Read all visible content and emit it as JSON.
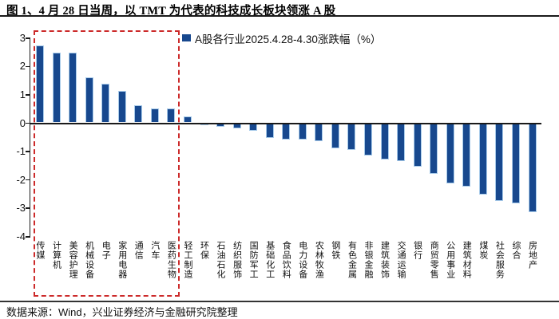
{
  "title": "图 1、4 月 28 日当周，以 TMT 为代表的科技成长板块领涨 A 股",
  "footer": "数据来源：Wind，兴业证券经济与金融研究院整理",
  "colors": {
    "bar": "#17488E",
    "bar_edge": "#A8CBEA",
    "highlight_box": "#CC2A2A",
    "axis": "#1A1A1A"
  },
  "chart_data": {
    "type": "bar",
    "title": "图 1、4 月 28 日当周，以 TMT 为代表的科技成长板块领涨 A 股",
    "legend": "A股各行业2025.4.28-4.30涨跌幅（%）",
    "legend_position": "top-right-inside",
    "xlabel": "",
    "ylabel": "",
    "ylim": [
      -4,
      3
    ],
    "y_ticks": [
      3,
      2,
      1,
      0,
      -1,
      -2,
      -3,
      -4
    ],
    "grid": false,
    "categories": [
      "传媒",
      "计算机",
      "美容护理",
      "机械设备",
      "电子",
      "家用电器",
      "通信",
      "汽车",
      "医药生物",
      "轻工制造",
      "环保",
      "石油石化",
      "纺织服饰",
      "国防军工",
      "基础化工",
      "食品饮料",
      "电力设备",
      "农林牧渔",
      "钢铁",
      "有色金属",
      "非银金融",
      "建筑装饰",
      "交通运输",
      "银行",
      "商贸零售",
      "公用事业",
      "建筑材料",
      "煤炭",
      "社会服务",
      "综合",
      "房地产"
    ],
    "values": [
      2.7,
      2.45,
      2.45,
      1.6,
      1.35,
      1.1,
      0.6,
      0.5,
      0.5,
      0.2,
      -0.03,
      -0.1,
      -0.15,
      -0.25,
      -0.5,
      -0.55,
      -0.55,
      -0.6,
      -0.85,
      -0.9,
      -1.1,
      -1.25,
      -1.3,
      -1.5,
      -1.75,
      -2.1,
      -2.2,
      -2.5,
      -2.7,
      -2.8,
      -3.1
    ],
    "highlight_box": {
      "style": "red-dashed-rectangle",
      "from_category": "传媒",
      "to_category": "医药生物"
    }
  }
}
